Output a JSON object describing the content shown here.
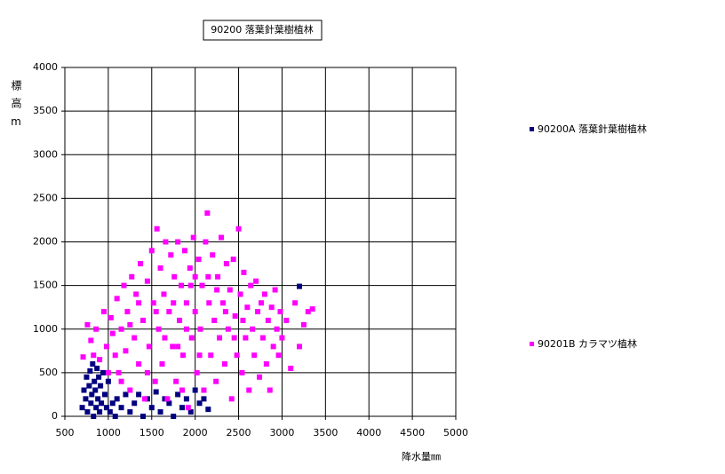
{
  "chart_data": {
    "type": "scatter",
    "title": "90200 落葉針葉樹植林",
    "x_label": "降水量㎜",
    "y_label": "標高m",
    "xlim": [
      500,
      5000
    ],
    "xticks": [
      500,
      1000,
      1500,
      2000,
      2500,
      3000,
      3500,
      4000,
      4500,
      5000
    ],
    "ylim": [
      0,
      4000
    ],
    "yticks": [
      0,
      500,
      1000,
      1500,
      2000,
      2500,
      3000,
      3500,
      4000
    ],
    "grid": true,
    "series": [
      {
        "name": "90200A 落葉針葉樹植林",
        "color": "#000080",
        "x": [
          700,
          720,
          740,
          750,
          760,
          780,
          790,
          800,
          810,
          820,
          830,
          840,
          850,
          860,
          870,
          880,
          890,
          900,
          910,
          920,
          940,
          960,
          980,
          1000,
          1020,
          1050,
          1080,
          1100,
          1150,
          1200,
          1250,
          1300,
          1350,
          1400,
          1450,
          1500,
          1550,
          1600,
          1650,
          1700,
          1750,
          1800,
          1850,
          1900,
          1950,
          2000,
          2050,
          2100,
          2150,
          3200
        ],
        "values": [
          100,
          300,
          200,
          450,
          50,
          350,
          520,
          150,
          250,
          600,
          0,
          400,
          300,
          100,
          550,
          200,
          450,
          50,
          350,
          150,
          500,
          250,
          100,
          400,
          50,
          150,
          0,
          200,
          100,
          250,
          50,
          150,
          250,
          0,
          200,
          100,
          280,
          50,
          200,
          150,
          0,
          250,
          100,
          200,
          50,
          300,
          150,
          200,
          80,
          1490
        ]
      },
      {
        "name": "90201B カラマツ植林",
        "color": "#ff00ff",
        "x": [
          710,
          760,
          800,
          830,
          860,
          900,
          950,
          980,
          1000,
          1030,
          1050,
          1080,
          1100,
          1120,
          1150,
          1180,
          1200,
          1220,
          1250,
          1270,
          1300,
          1320,
          1350,
          1370,
          1400,
          1420,
          1450,
          1470,
          1500,
          1520,
          1540,
          1560,
          1580,
          1600,
          1620,
          1640,
          1660,
          1680,
          1700,
          1720,
          1740,
          1760,
          1780,
          1800,
          1820,
          1840,
          1860,
          1880,
          1900,
          1920,
          1940,
          1960,
          1980,
          2000,
          2020,
          2040,
          2060,
          2080,
          2100,
          2120,
          2140,
          2160,
          2180,
          2200,
          2220,
          2240,
          2260,
          2280,
          2300,
          2320,
          2340,
          2360,
          2380,
          2400,
          2420,
          2440,
          2460,
          2480,
          2500,
          2520,
          2540,
          2560,
          2580,
          2600,
          2620,
          2640,
          2660,
          2680,
          2700,
          2720,
          2740,
          2760,
          2780,
          2800,
          2820,
          2840,
          2860,
          2880,
          2900,
          2920,
          2940,
          2960,
          2980,
          3000,
          3050,
          3100,
          3150,
          3200,
          3250,
          3300,
          3350,
          1150,
          1250,
          1350,
          1450,
          1550,
          1650,
          1750,
          1850,
          1950,
          2050,
          2150,
          2250,
          2350,
          2450,
          2550,
          2000,
          1900,
          1800
        ],
        "values": [
          680,
          1050,
          870,
          700,
          1000,
          650,
          1200,
          800,
          500,
          1130,
          950,
          700,
          1350,
          500,
          1000,
          1500,
          750,
          1200,
          300,
          1600,
          900,
          1400,
          600,
          1750,
          1100,
          200,
          1550,
          800,
          1900,
          1300,
          400,
          2150,
          1000,
          1700,
          600,
          1400,
          2000,
          200,
          1200,
          1850,
          800,
          1600,
          400,
          2000,
          1100,
          1500,
          700,
          1900,
          1300,
          100,
          1700,
          900,
          2050,
          1200,
          500,
          1800,
          1000,
          1500,
          300,
          2000,
          2330,
          1300,
          700,
          1850,
          1100,
          400,
          1600,
          900,
          2050,
          1300,
          600,
          1750,
          1000,
          1450,
          200,
          1800,
          1150,
          700,
          2150,
          1400,
          500,
          1650,
          900,
          1250,
          300,
          1500,
          1000,
          700,
          1550,
          1200,
          450,
          1300,
          900,
          1400,
          600,
          1100,
          300,
          1250,
          800,
          1450,
          1000,
          700,
          1200,
          900,
          1100,
          550,
          1300,
          800,
          1050,
          1200,
          1230,
          400,
          1050,
          1300,
          500,
          1200,
          900,
          1300,
          300,
          1500,
          700,
          1600,
          1450,
          1200,
          900,
          1100,
          1600,
          1000,
          800
        ]
      }
    ]
  }
}
